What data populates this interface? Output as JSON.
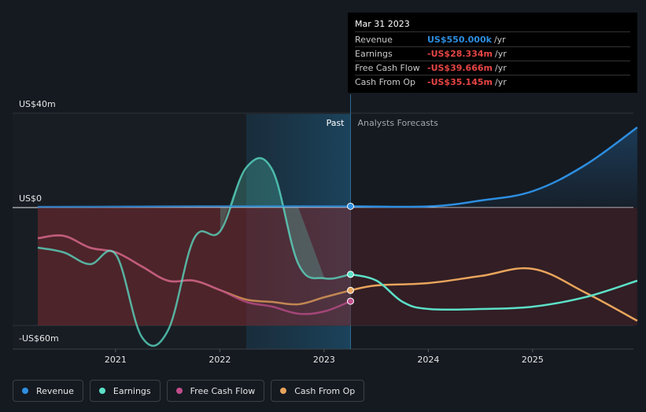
{
  "tooltip": {
    "date": "Mar 31 2023",
    "rows": [
      {
        "label": "Revenue",
        "value": "US$550.000k",
        "unit": "/yr",
        "color": "#2d8ee0"
      },
      {
        "label": "Earnings",
        "value": "-US$28.334m",
        "unit": "/yr",
        "color": "#e64545"
      },
      {
        "label": "Free Cash Flow",
        "value": "-US$39.666m",
        "unit": "/yr",
        "color": "#e64545"
      },
      {
        "label": "Cash From Op",
        "value": "-US$35.145m",
        "unit": "/yr",
        "color": "#e64545"
      }
    ]
  },
  "chart_data": {
    "type": "line",
    "y_tick_labels": [
      {
        "value": 40,
        "label": "US$40m"
      },
      {
        "value": 0,
        "label": "US$0"
      },
      {
        "value": -60,
        "label": "-US$60m"
      }
    ],
    "x_tick_labels": [
      {
        "value": 2021,
        "label": "2021"
      },
      {
        "value": 2022,
        "label": "2022"
      },
      {
        "value": 2023,
        "label": "2023"
      },
      {
        "value": 2024,
        "label": "2024"
      },
      {
        "value": 2025,
        "label": "2025"
      }
    ],
    "xlim": [
      2020.25,
      2026.0
    ],
    "ylim": [
      -60,
      40
    ],
    "region_labels": {
      "past": "Past",
      "forecast": "Analysts Forecasts"
    },
    "highlight_range": [
      2022.25,
      2023.25
    ],
    "cursor_x": 2023.25,
    "series": [
      {
        "name": "Revenue",
        "color": "#2d8ee0",
        "points": [
          [
            2020.25,
            0.3
          ],
          [
            2021.0,
            0.4
          ],
          [
            2022.0,
            0.6
          ],
          [
            2023.25,
            0.55
          ],
          [
            2024.0,
            0.5
          ],
          [
            2024.5,
            3
          ],
          [
            2025.0,
            7
          ],
          [
            2025.5,
            18
          ],
          [
            2026.0,
            34
          ]
        ]
      },
      {
        "name": "Earnings",
        "color": "#5ce0c8",
        "points": [
          [
            2020.25,
            -17
          ],
          [
            2020.5,
            -19
          ],
          [
            2020.75,
            -24
          ],
          [
            2021.0,
            -20
          ],
          [
            2021.25,
            -55
          ],
          [
            2021.5,
            -52
          ],
          [
            2021.75,
            -13
          ],
          [
            2022.0,
            -10
          ],
          [
            2022.25,
            17
          ],
          [
            2022.5,
            16
          ],
          [
            2022.75,
            -24
          ],
          [
            2023.0,
            -30
          ],
          [
            2023.25,
            -28.3
          ],
          [
            2023.5,
            -31
          ],
          [
            2023.75,
            -40
          ],
          [
            2024.0,
            -43
          ],
          [
            2024.5,
            -43
          ],
          [
            2025.0,
            -42
          ],
          [
            2025.5,
            -38
          ],
          [
            2026.0,
            -31
          ]
        ]
      },
      {
        "name": "Free Cash Flow",
        "color": "#c04d8c",
        "points": [
          [
            2020.25,
            -13
          ],
          [
            2020.5,
            -12
          ],
          [
            2020.75,
            -17
          ],
          [
            2021.0,
            -19
          ],
          [
            2021.25,
            -25
          ],
          [
            2021.5,
            -31
          ],
          [
            2021.75,
            -31
          ],
          [
            2022.0,
            -35
          ],
          [
            2022.25,
            -40
          ],
          [
            2022.5,
            -42
          ],
          [
            2022.75,
            -45
          ],
          [
            2023.0,
            -44
          ],
          [
            2023.25,
            -39.7
          ]
        ]
      },
      {
        "name": "Cash From Op",
        "color": "#e8a45c",
        "points": [
          [
            2020.25,
            -13
          ],
          [
            2020.5,
            -12
          ],
          [
            2020.75,
            -17
          ],
          [
            2021.0,
            -19
          ],
          [
            2021.25,
            -25
          ],
          [
            2021.5,
            -31
          ],
          [
            2021.75,
            -31
          ],
          [
            2022.0,
            -35
          ],
          [
            2022.25,
            -39
          ],
          [
            2022.5,
            -40
          ],
          [
            2022.75,
            -41
          ],
          [
            2023.0,
            -38
          ],
          [
            2023.25,
            -35.1
          ],
          [
            2023.5,
            -33
          ],
          [
            2024.0,
            -32
          ],
          [
            2024.5,
            -29
          ],
          [
            2025.0,
            -26
          ],
          [
            2025.5,
            -36
          ],
          [
            2026.0,
            -48
          ]
        ]
      }
    ]
  },
  "legend": [
    {
      "label": "Revenue",
      "color": "#2d8ee0"
    },
    {
      "label": "Earnings",
      "color": "#5ce0c8"
    },
    {
      "label": "Free Cash Flow",
      "color": "#c04d8c"
    },
    {
      "label": "Cash From Op",
      "color": "#e8a45c"
    }
  ]
}
